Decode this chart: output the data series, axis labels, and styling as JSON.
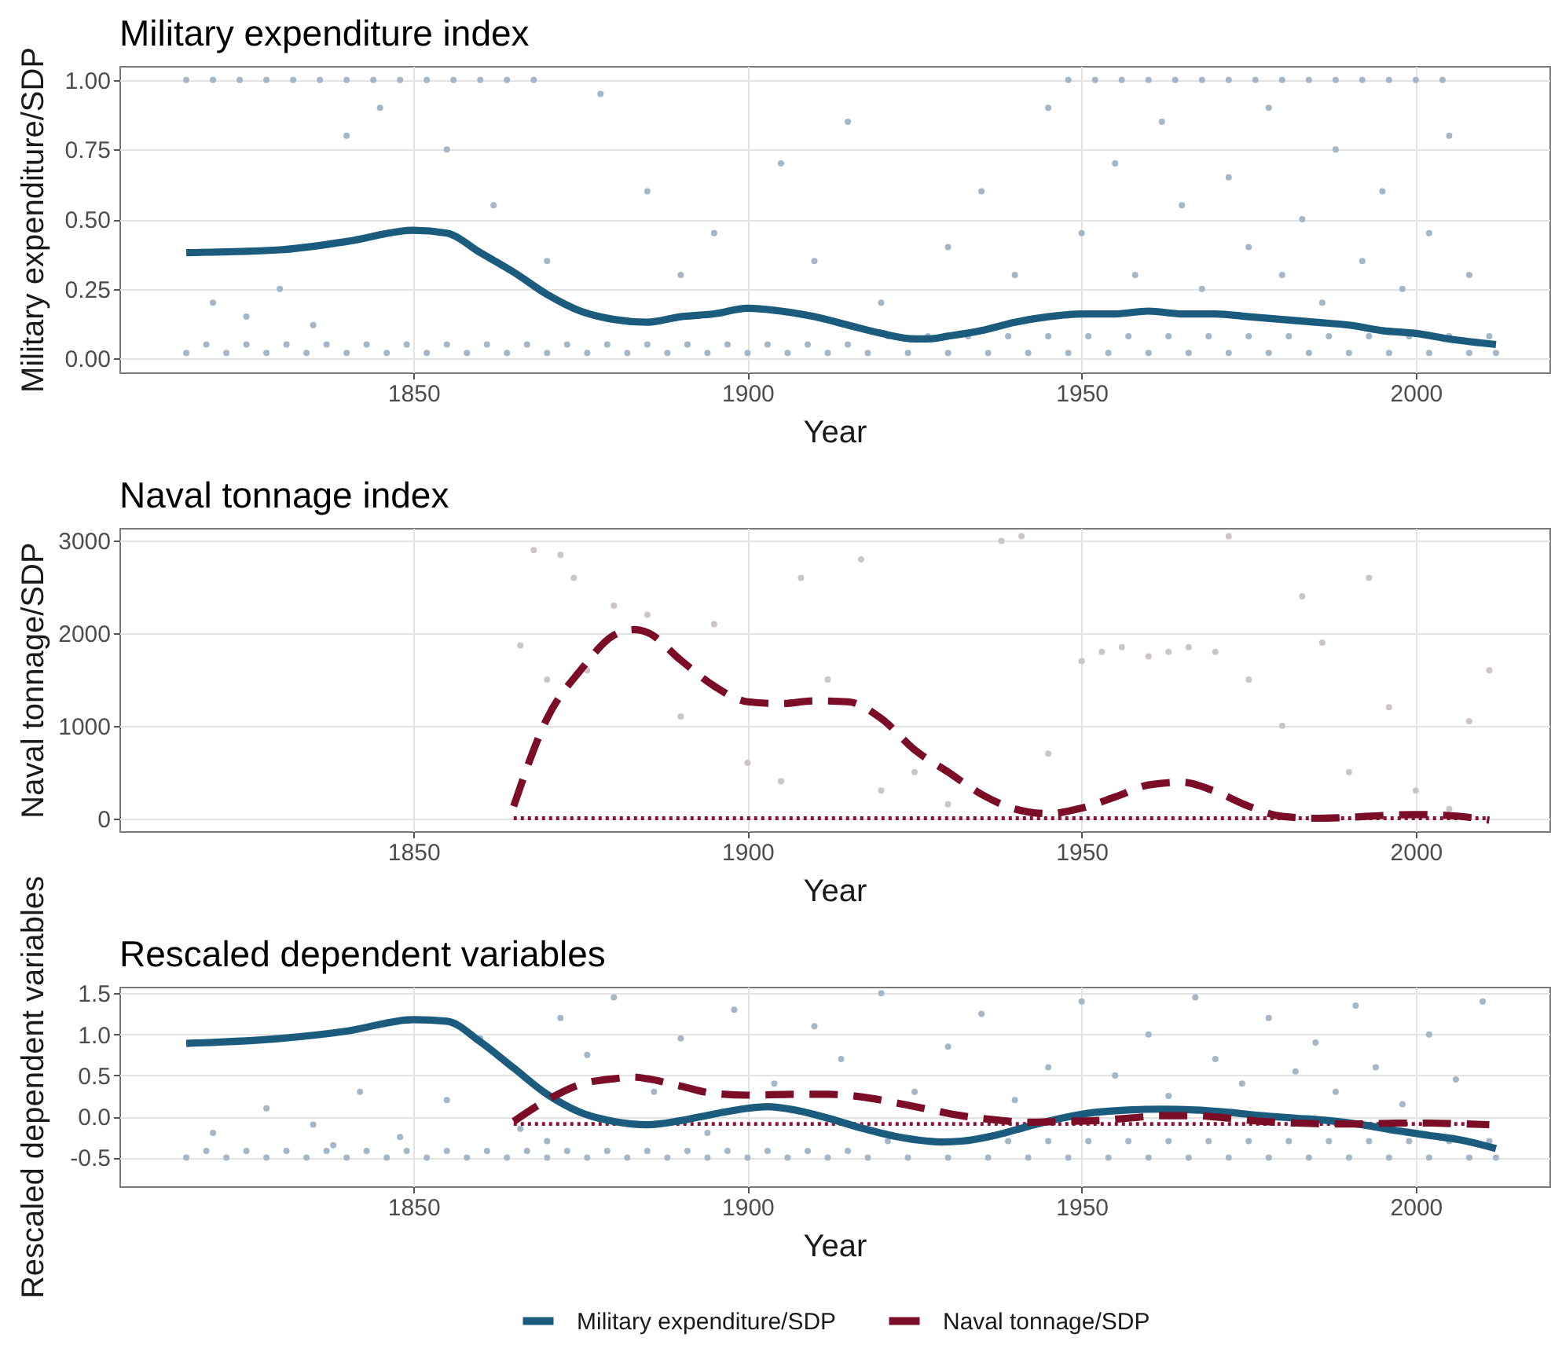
{
  "chart_data": [
    {
      "type": "line",
      "title": "Military expenditure index",
      "xlabel": "Year",
      "ylabel": "Military expenditure/SDP",
      "xlim": [
        1806,
        2020
      ],
      "xticks": [
        1850,
        1900,
        1950,
        2000
      ],
      "ylim": [
        -0.05,
        1.05
      ],
      "yticks": [
        {
          "value": 0,
          "label": "0.00"
        },
        0.25,
        {
          "value": 0.5,
          "label": "0.50"
        },
        0.75,
        {
          "value": 1,
          "label": "1.00"
        }
      ],
      "grid": true,
      "series": [
        {
          "type": "scatter",
          "marker": "circle",
          "color": "#a3b7c8",
          "x": [
            1816,
            1820,
            1824,
            1828,
            1832,
            1836,
            1840,
            1844,
            1848,
            1852,
            1856,
            1860,
            1864,
            1868,
            1948,
            1952,
            1956,
            1960,
            1964,
            1968,
            1972,
            1976,
            1980,
            1984,
            1988,
            1992,
            1996,
            2000,
            2004,
            1816,
            1822,
            1828,
            1834,
            1840,
            1846,
            1852,
            1858,
            1864,
            1870,
            1876,
            1882,
            1888,
            1894,
            1900,
            1906,
            1912,
            1918,
            1924,
            1930,
            1936,
            1942,
            1948,
            1954,
            1960,
            1966,
            1972,
            1978,
            1984,
            1990,
            1996,
            2002,
            2008,
            2012,
            1819,
            1825,
            1831,
            1837,
            1843,
            1849,
            1855,
            1861,
            1867,
            1873,
            1879,
            1885,
            1891,
            1897,
            1903,
            1909,
            1915,
            1921,
            1927,
            1933,
            1939,
            1945,
            1951,
            1957,
            1963,
            1969,
            1975,
            1981,
            1987,
            1993,
            1999,
            2005,
            2011,
            1820,
            1825,
            1830,
            1835,
            1840,
            1845,
            1855,
            1862,
            1870,
            1878,
            1885,
            1890,
            1895,
            1905,
            1910,
            1915,
            1920,
            1930,
            1935,
            1940,
            1945,
            1950,
            1955,
            1958,
            1962,
            1965,
            1968,
            1972,
            1975,
            1978,
            1980,
            1983,
            1986,
            1988,
            1992,
            1995,
            1998,
            2002,
            2005,
            2008
          ],
          "values": [
            1,
            1,
            1,
            1,
            1,
            1,
            1,
            1,
            1,
            1,
            1,
            1,
            1,
            1,
            1,
            1,
            1,
            1,
            1,
            1,
            1,
            1,
            1,
            1,
            1,
            1,
            1,
            1,
            1,
            0.02,
            0.02,
            0.02,
            0.02,
            0.02,
            0.02,
            0.02,
            0.02,
            0.02,
            0.02,
            0.02,
            0.02,
            0.02,
            0.02,
            0.02,
            0.02,
            0.02,
            0.02,
            0.02,
            0.02,
            0.02,
            0.02,
            0.02,
            0.02,
            0.02,
            0.02,
            0.02,
            0.02,
            0.02,
            0.02,
            0.02,
            0.02,
            0.02,
            0.02,
            0.05,
            0.05,
            0.05,
            0.05,
            0.05,
            0.05,
            0.05,
            0.05,
            0.05,
            0.05,
            0.05,
            0.05,
            0.05,
            0.05,
            0.05,
            0.05,
            0.05,
            0.08,
            0.08,
            0.08,
            0.08,
            0.08,
            0.08,
            0.08,
            0.08,
            0.08,
            0.08,
            0.08,
            0.08,
            0.08,
            0.08,
            0.08,
            0.08,
            0.2,
            0.15,
            0.25,
            0.12,
            0.8,
            0.9,
            0.75,
            0.55,
            0.35,
            0.95,
            0.6,
            0.3,
            0.45,
            0.7,
            0.35,
            0.85,
            0.2,
            0.4,
            0.6,
            0.3,
            0.9,
            0.45,
            0.7,
            0.3,
            0.85,
            0.55,
            0.25,
            0.65,
            0.4,
            0.9,
            0.3,
            0.5,
            0.2,
            0.75,
            0.35,
            0.6,
            0.25,
            0.45,
            0.8,
            0.3
          ]
        },
        {
          "type": "line",
          "line_style": "solid",
          "color": "#1b5b7d",
          "x": [
            1816,
            1830,
            1840,
            1850,
            1855,
            1860,
            1865,
            1870,
            1875,
            1880,
            1885,
            1890,
            1895,
            1900,
            1905,
            1910,
            1915,
            1920,
            1925,
            1927,
            1930,
            1935,
            1940,
            1945,
            1950,
            1955,
            1960,
            1965,
            1970,
            1975,
            1980,
            1985,
            1990,
            1995,
            2000,
            2005,
            2012
          ],
          "values": [
            0.38,
            0.39,
            0.42,
            0.46,
            0.45,
            0.38,
            0.31,
            0.23,
            0.17,
            0.14,
            0.13,
            0.15,
            0.16,
            0.18,
            0.17,
            0.15,
            0.12,
            0.09,
            0.07,
            0.07,
            0.08,
            0.1,
            0.13,
            0.15,
            0.16,
            0.16,
            0.17,
            0.16,
            0.16,
            0.15,
            0.14,
            0.13,
            0.12,
            0.1,
            0.09,
            0.07,
            0.05
          ]
        }
      ]
    },
    {
      "type": "line",
      "title": "Naval tonnage index",
      "xlabel": "Year",
      "ylabel": "Naval tonnage/SDP",
      "xlim": [
        1806,
        2020
      ],
      "xticks": [
        1850,
        1900,
        1950,
        2000
      ],
      "ylim": [
        -140,
        3140
      ],
      "yticks": [
        0,
        1000,
        2000,
        3000
      ],
      "grid": true,
      "series": [
        {
          "type": "scatter",
          "marker": "circle",
          "color": "#cdc4c9",
          "x": [
            1866,
            1868,
            1870,
            1872,
            1874,
            1876,
            1880,
            1885,
            1890,
            1895,
            1900,
            1905,
            1908,
            1912,
            1917,
            1920,
            1925,
            1930,
            1938,
            1941,
            1945,
            1950,
            1953,
            1956,
            1960,
            1963,
            1966,
            1970,
            1972,
            1975,
            1980,
            1983,
            1986,
            1990,
            1993,
            1996,
            2000,
            2005,
            2008,
            2011
          ],
          "values": [
            1870,
            2900,
            1500,
            2850,
            2600,
            1600,
            2300,
            2200,
            1100,
            2100,
            600,
            400,
            2600,
            1500,
            2800,
            300,
            500,
            150,
            3000,
            3050,
            700,
            1700,
            1800,
            1850,
            1750,
            1800,
            1850,
            1800,
            3050,
            1500,
            1000,
            2400,
            1900,
            500,
            2600,
            1200,
            300,
            100,
            1050,
            1600
          ]
        },
        {
          "type": "line",
          "line_style": "dotted",
          "color": "#8e1236",
          "x": [
            1865,
            2011
          ],
          "values": [
            0,
            0
          ]
        },
        {
          "type": "line",
          "line_style": "dashed",
          "color": "#7b0d27",
          "x": [
            1865,
            1870,
            1875,
            1880,
            1883,
            1885,
            1890,
            1895,
            1900,
            1905,
            1910,
            1915,
            1920,
            1925,
            1930,
            1935,
            1940,
            1945,
            1950,
            1955,
            1960,
            1965,
            1970,
            1975,
            1980,
            1985,
            1990,
            1995,
            2000,
            2005,
            2011
          ],
          "values": [
            130,
            1080,
            1600,
            1980,
            2040,
            2010,
            1710,
            1430,
            1260,
            1240,
            1270,
            1260,
            1080,
            740,
            500,
            260,
            100,
            50,
            110,
            230,
            360,
            390,
            290,
            130,
            20,
            0,
            10,
            30,
            40,
            30,
            -20
          ]
        }
      ]
    },
    {
      "type": "line",
      "title": "Rescaled dependent variables",
      "xlabel": "Year",
      "ylabel": "Rescaled dependent variables",
      "xlim": [
        1806,
        2020
      ],
      "xticks": [
        1850,
        1900,
        1950,
        2000
      ],
      "ylim": [
        -0.85,
        1.58
      ],
      "yticks": [
        -0.5,
        {
          "value": 0,
          "label": "0.0"
        },
        0.5,
        {
          "value": 1,
          "label": "1.0"
        },
        1.5
      ],
      "grid": true,
      "legend": "bottom",
      "series": [
        {
          "type": "scatter",
          "marker": "circle",
          "color": "#a3b7c8",
          "x": [
            1816,
            1822,
            1828,
            1834,
            1840,
            1846,
            1852,
            1858,
            1864,
            1870,
            1876,
            1882,
            1888,
            1894,
            1900,
            1906,
            1912,
            1918,
            1924,
            1930,
            1936,
            1942,
            1948,
            1954,
            1960,
            1966,
            1972,
            1978,
            1984,
            1990,
            1996,
            2002,
            2008,
            2012,
            1819,
            1825,
            1831,
            1837,
            1843,
            1849,
            1855,
            1861,
            1867,
            1873,
            1879,
            1885,
            1891,
            1897,
            1903,
            1909,
            1915,
            1921,
            1933,
            1939,
            1945,
            1951,
            1957,
            1963,
            1969,
            1975,
            1981,
            1987,
            1993,
            1999,
            2005,
            2011,
            1820,
            1828,
            1835,
            1838,
            1842,
            1848,
            1855,
            1860,
            1866,
            1870,
            1872,
            1876,
            1880,
            1886,
            1890,
            1894,
            1898,
            1904,
            1910,
            1914,
            1920,
            1925,
            1930,
            1935,
            1940,
            1945,
            1950,
            1955,
            1960,
            1963,
            1967,
            1970,
            1974,
            1978,
            1982,
            1985,
            1988,
            1991,
            1994,
            1998,
            2002,
            2006,
            2010
          ],
          "values": [
            -0.5,
            -0.5,
            -0.5,
            -0.5,
            -0.5,
            -0.5,
            -0.5,
            -0.5,
            -0.5,
            -0.5,
            -0.5,
            -0.5,
            -0.5,
            -0.5,
            -0.5,
            -0.5,
            -0.5,
            -0.5,
            -0.5,
            -0.5,
            -0.5,
            -0.5,
            -0.5,
            -0.5,
            -0.5,
            -0.5,
            -0.5,
            -0.5,
            -0.5,
            -0.5,
            -0.5,
            -0.5,
            -0.5,
            -0.5,
            -0.42,
            -0.42,
            -0.42,
            -0.42,
            -0.42,
            -0.42,
            -0.42,
            -0.42,
            -0.42,
            -0.42,
            -0.42,
            -0.42,
            -0.42,
            -0.42,
            -0.42,
            -0.42,
            -0.42,
            -0.3,
            -0.3,
            -0.3,
            -0.3,
            -0.3,
            -0.3,
            -0.3,
            -0.3,
            -0.3,
            -0.3,
            -0.3,
            -0.3,
            -0.3,
            -0.3,
            -0.3,
            -0.2,
            0.1,
            -0.1,
            -0.35,
            0.3,
            -0.25,
            0.2,
            0.95,
            -0.15,
            -0.3,
            1.2,
            0.75,
            1.45,
            0.3,
            0.95,
            -0.2,
            1.3,
            0.4,
            1.1,
            0.7,
            1.5,
            0.3,
            0.85,
            1.25,
            0.2,
            0.6,
            1.4,
            0.5,
            1.0,
            0.25,
            1.45,
            0.7,
            0.4,
            1.2,
            0.55,
            0.9,
            0.3,
            1.35,
            0.6,
            0.15,
            1.0,
            0.45,
            1.4
          ]
        },
        {
          "type": "line",
          "line_style": "dotted",
          "color": "#8e1236",
          "x": [
            1865,
            2011
          ],
          "values": [
            -0.09,
            -0.09
          ]
        },
        {
          "type": "line",
          "name": "Military expenditure/SDP",
          "line_style": "solid",
          "color": "#1b5b7d",
          "x": [
            1816,
            1830,
            1840,
            1850,
            1855,
            1860,
            1865,
            1870,
            1875,
            1880,
            1885,
            1890,
            1895,
            1900,
            1903,
            1907,
            1912,
            1917,
            1922,
            1927,
            1929,
            1932,
            1937,
            1942,
            1947,
            1952,
            1957,
            1962,
            1967,
            1972,
            1977,
            1982,
            1987,
            1992,
            1997,
            2002,
            2007,
            2012
          ],
          "values": [
            0.89,
            0.95,
            1.04,
            1.18,
            1.16,
            0.91,
            0.59,
            0.27,
            0.05,
            -0.06,
            -0.1,
            -0.05,
            0.03,
            0.1,
            0.12,
            0.08,
            -0.02,
            -0.14,
            -0.24,
            -0.3,
            -0.31,
            -0.3,
            -0.23,
            -0.12,
            -0.02,
            0.05,
            0.08,
            0.09,
            0.08,
            0.05,
            0.01,
            -0.02,
            -0.05,
            -0.1,
            -0.17,
            -0.23,
            -0.29,
            -0.39
          ]
        },
        {
          "type": "line",
          "name": "Naval tonnage/SDP",
          "line_style": "dashed",
          "color": "#7b0d27",
          "x": [
            1865,
            1870,
            1875,
            1880,
            1883,
            1885,
            1890,
            1895,
            1900,
            1907,
            1912,
            1917,
            1922,
            1927,
            1932,
            1937,
            1942,
            1947,
            1952,
            1957,
            1962,
            1967,
            1972,
            1977,
            1982,
            1987,
            1992,
            1997,
            2002,
            2007,
            2011
          ],
          "values": [
            -0.06,
            0.2,
            0.39,
            0.46,
            0.48,
            0.46,
            0.37,
            0.28,
            0.26,
            0.27,
            0.27,
            0.24,
            0.17,
            0.09,
            0.01,
            -0.04,
            -0.07,
            -0.06,
            -0.05,
            -0.02,
            0.01,
            0.01,
            -0.02,
            -0.06,
            -0.08,
            -0.09,
            -0.09,
            -0.08,
            -0.08,
            -0.09,
            -0.1
          ]
        }
      ]
    }
  ]
}
